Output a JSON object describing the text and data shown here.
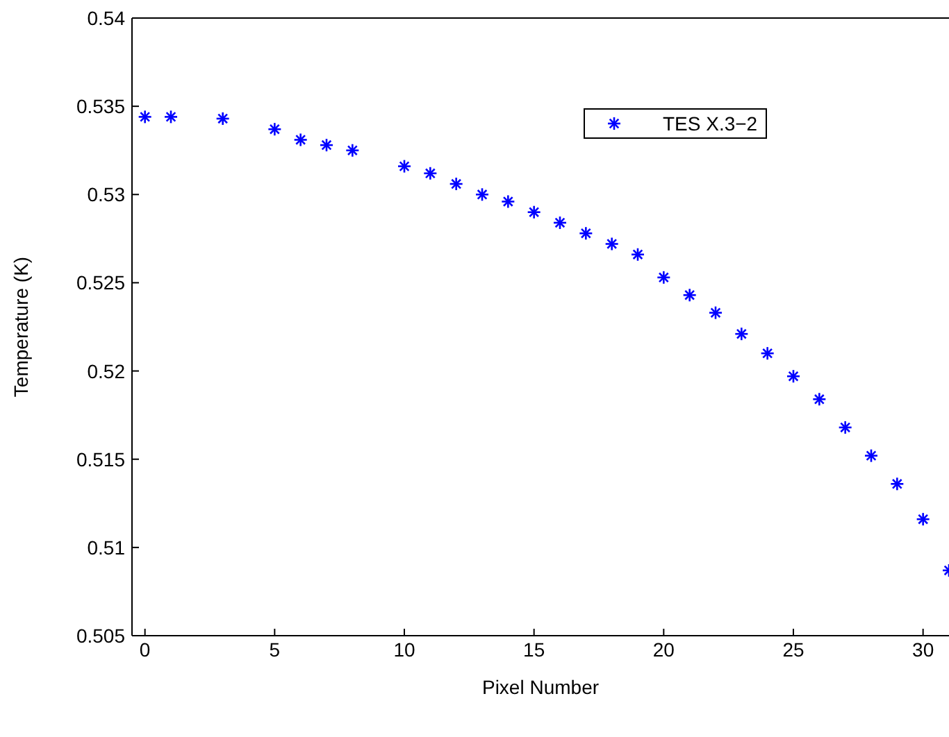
{
  "chart_data": {
    "type": "scatter",
    "xlabel": "Pixel Number",
    "ylabel": "Temperature (K)",
    "x": [
      0,
      1,
      3,
      5,
      6,
      7,
      8,
      10,
      11,
      12,
      13,
      14,
      15,
      16,
      17,
      18,
      19,
      20,
      21,
      22,
      23,
      24,
      25,
      26,
      27,
      28,
      29,
      30,
      31
    ],
    "series": [
      {
        "name": "TES X.3−2",
        "color": "#0000ff",
        "values": [
          0.5344,
          0.5344,
          0.5343,
          0.5337,
          0.5331,
          0.5328,
          0.5325,
          0.5316,
          0.5312,
          0.5306,
          0.53,
          0.5296,
          0.529,
          0.5284,
          0.5278,
          0.5272,
          0.5266,
          0.5253,
          0.5243,
          0.5233,
          0.5221,
          0.521,
          0.5197,
          0.5184,
          0.5168,
          0.5152,
          0.5136,
          0.5116,
          0.5087
        ]
      }
    ],
    "xlim": [
      -0.5,
      31
    ],
    "xticks": [
      0,
      5,
      10,
      15,
      20,
      25,
      30
    ],
    "ylim": [
      0.505,
      0.54
    ],
    "yticks": [
      0.505,
      0.51,
      0.515,
      0.52,
      0.525,
      0.53,
      0.535,
      0.54
    ],
    "marker": "cross",
    "legend": "top right",
    "grid": false
  }
}
